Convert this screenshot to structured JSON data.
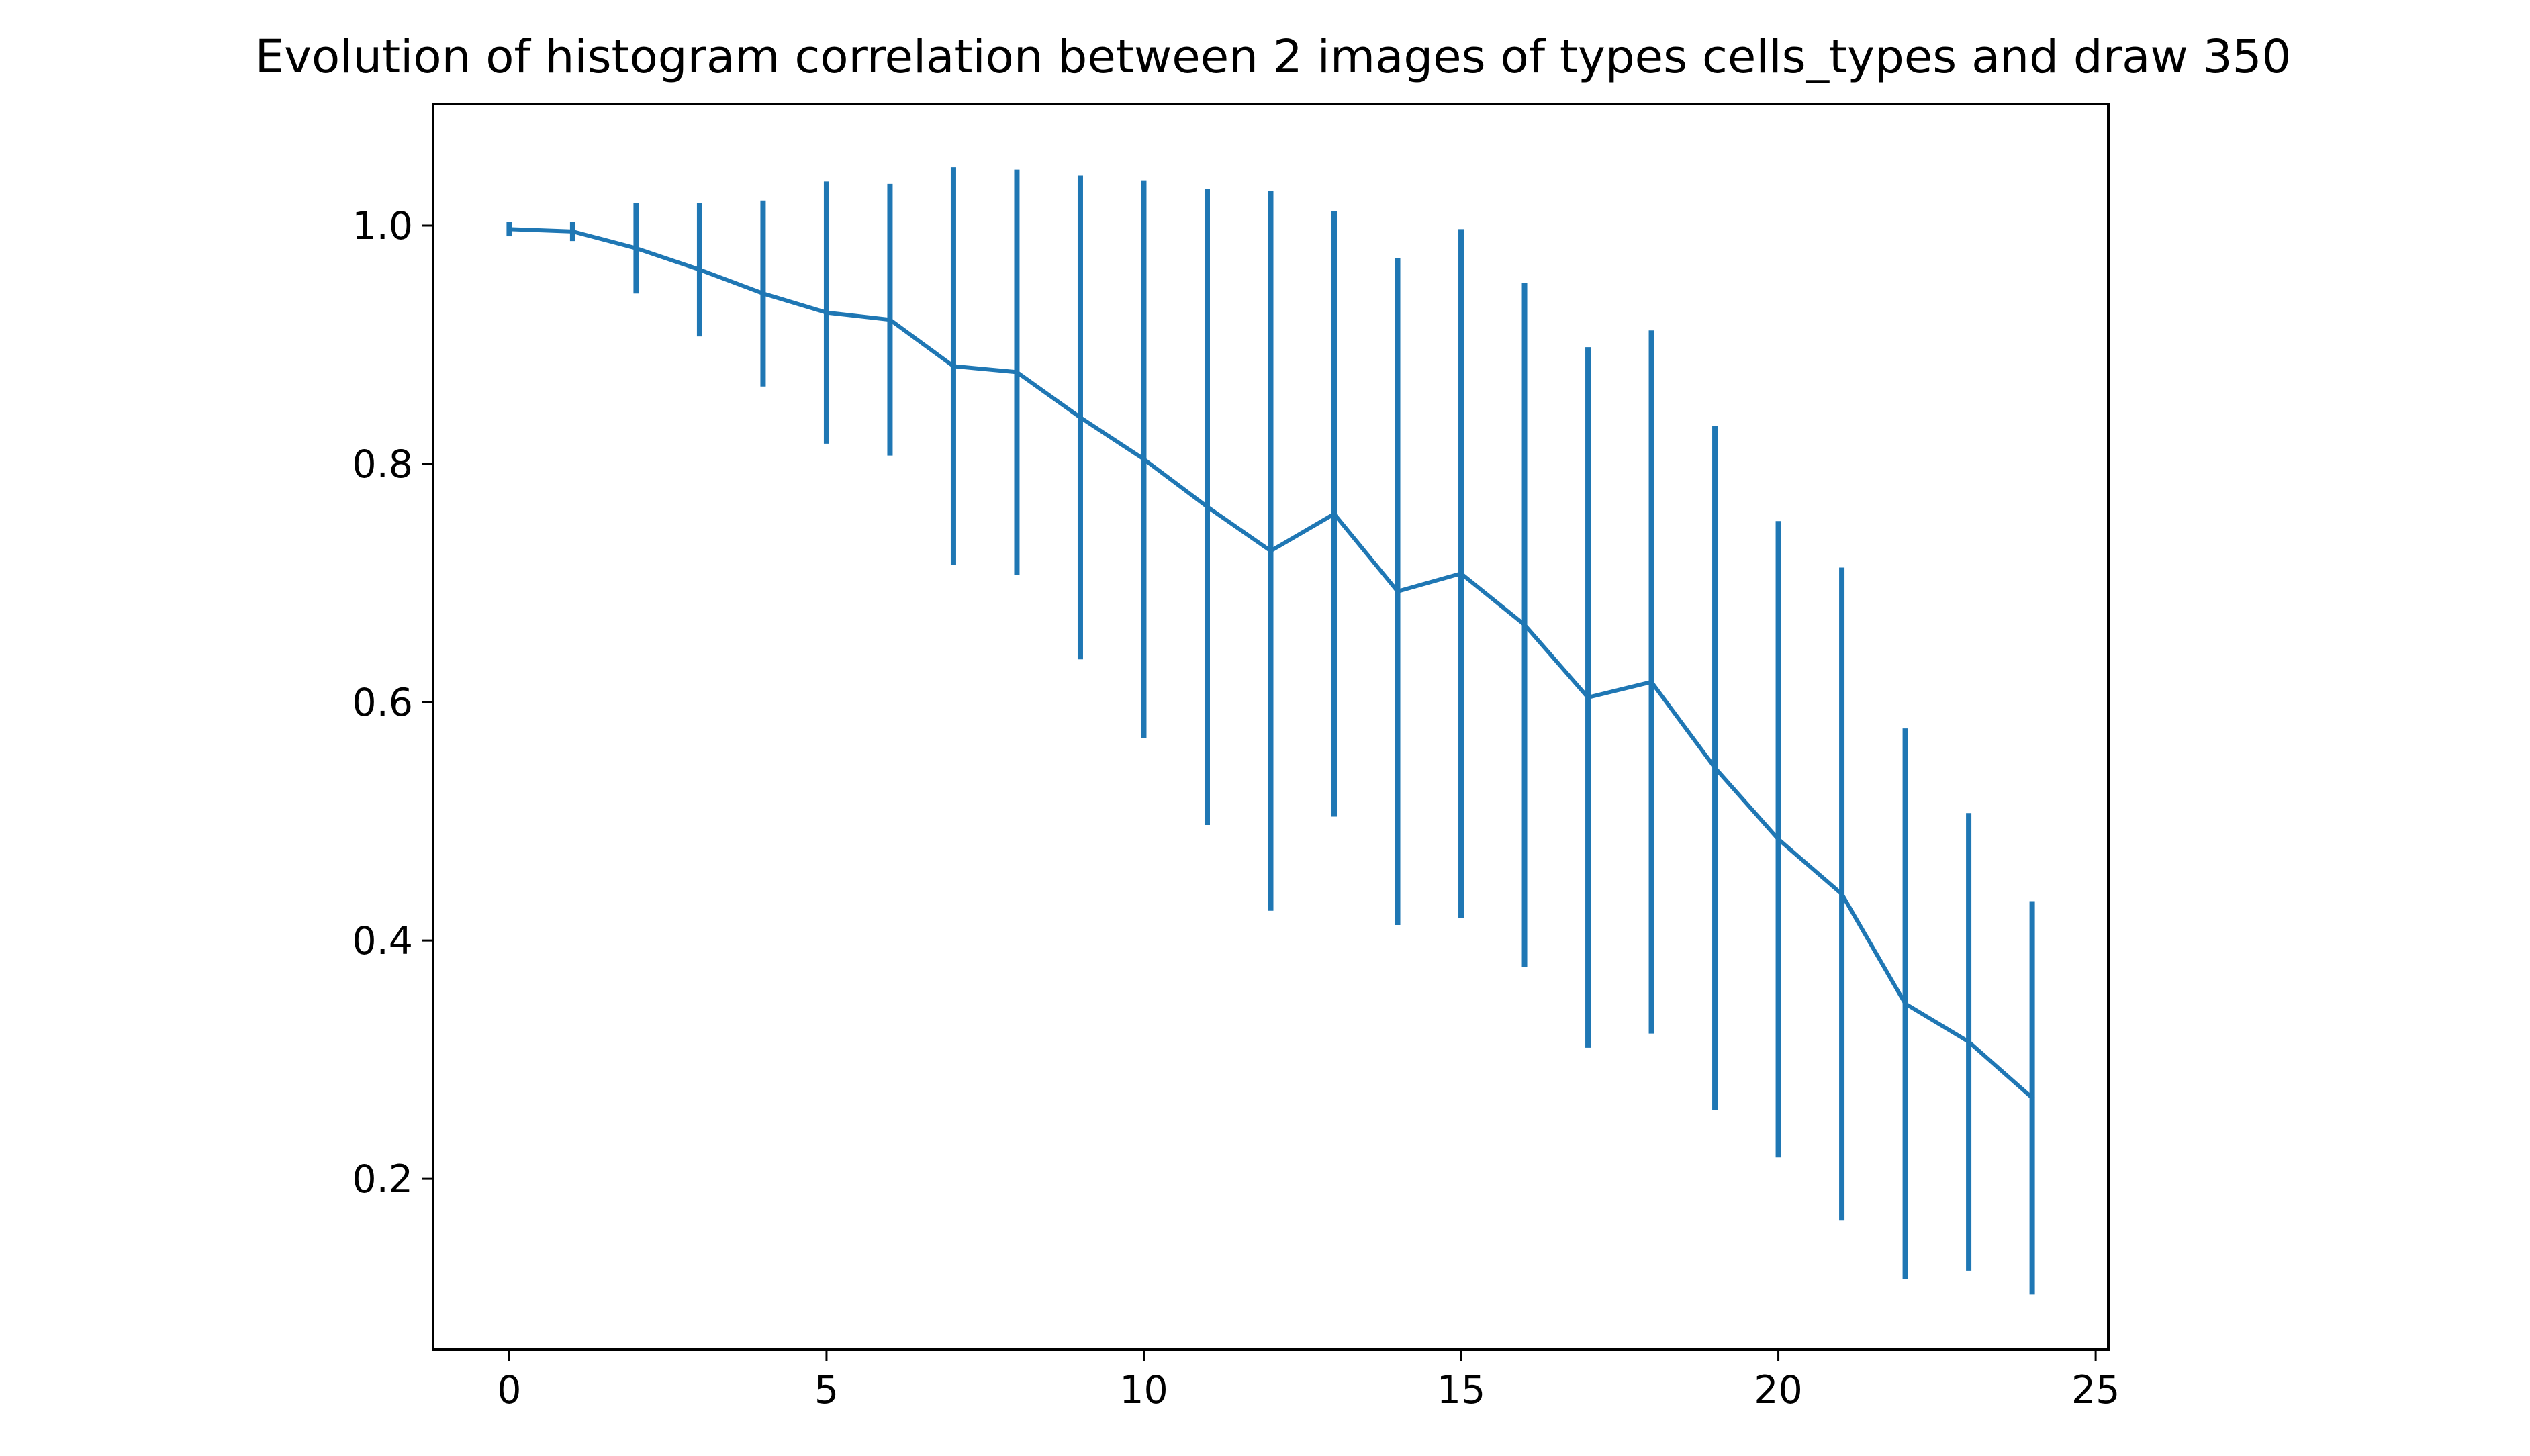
{
  "chart_data": {
    "type": "line",
    "title": "Evolution of histogram correlation between 2 images of types cells_types and draw 350",
    "xlabel": "",
    "ylabel": "",
    "xlim": [
      -1.2,
      25.2
    ],
    "ylim": [
      0.057,
      1.102
    ],
    "grid": false,
    "legend": "none",
    "x_ticks": [
      0,
      5,
      10,
      15,
      20,
      25
    ],
    "x_tick_labels": [
      "0",
      "5",
      "10",
      "15",
      "20",
      "25"
    ],
    "y_ticks": [
      0.2,
      0.4,
      0.6,
      0.8,
      1.0
    ],
    "y_tick_labels": [
      "0.2",
      "0.4",
      "0.6",
      "0.8",
      "1.0"
    ],
    "series": [
      {
        "color": "#1f77b4",
        "x": [
          0,
          1,
          2,
          3,
          4,
          5,
          6,
          7,
          8,
          9,
          10,
          11,
          12,
          13,
          14,
          15,
          16,
          17,
          18,
          19,
          20,
          21,
          22,
          23,
          24
        ],
        "y": [
          0.997,
          0.995,
          0.981,
          0.963,
          0.943,
          0.927,
          0.921,
          0.882,
          0.877,
          0.839,
          0.804,
          0.764,
          0.727,
          0.758,
          0.693,
          0.708,
          0.665,
          0.604,
          0.617,
          0.545,
          0.485,
          0.439,
          0.347,
          0.315,
          0.268
        ],
        "yerr": [
          0.006,
          0.008,
          0.038,
          0.056,
          0.078,
          0.11,
          0.114,
          0.167,
          0.17,
          0.203,
          0.234,
          0.267,
          0.302,
          0.254,
          0.28,
          0.289,
          0.287,
          0.294,
          0.295,
          0.287,
          0.267,
          0.274,
          0.231,
          0.192,
          0.165
        ]
      }
    ]
  }
}
